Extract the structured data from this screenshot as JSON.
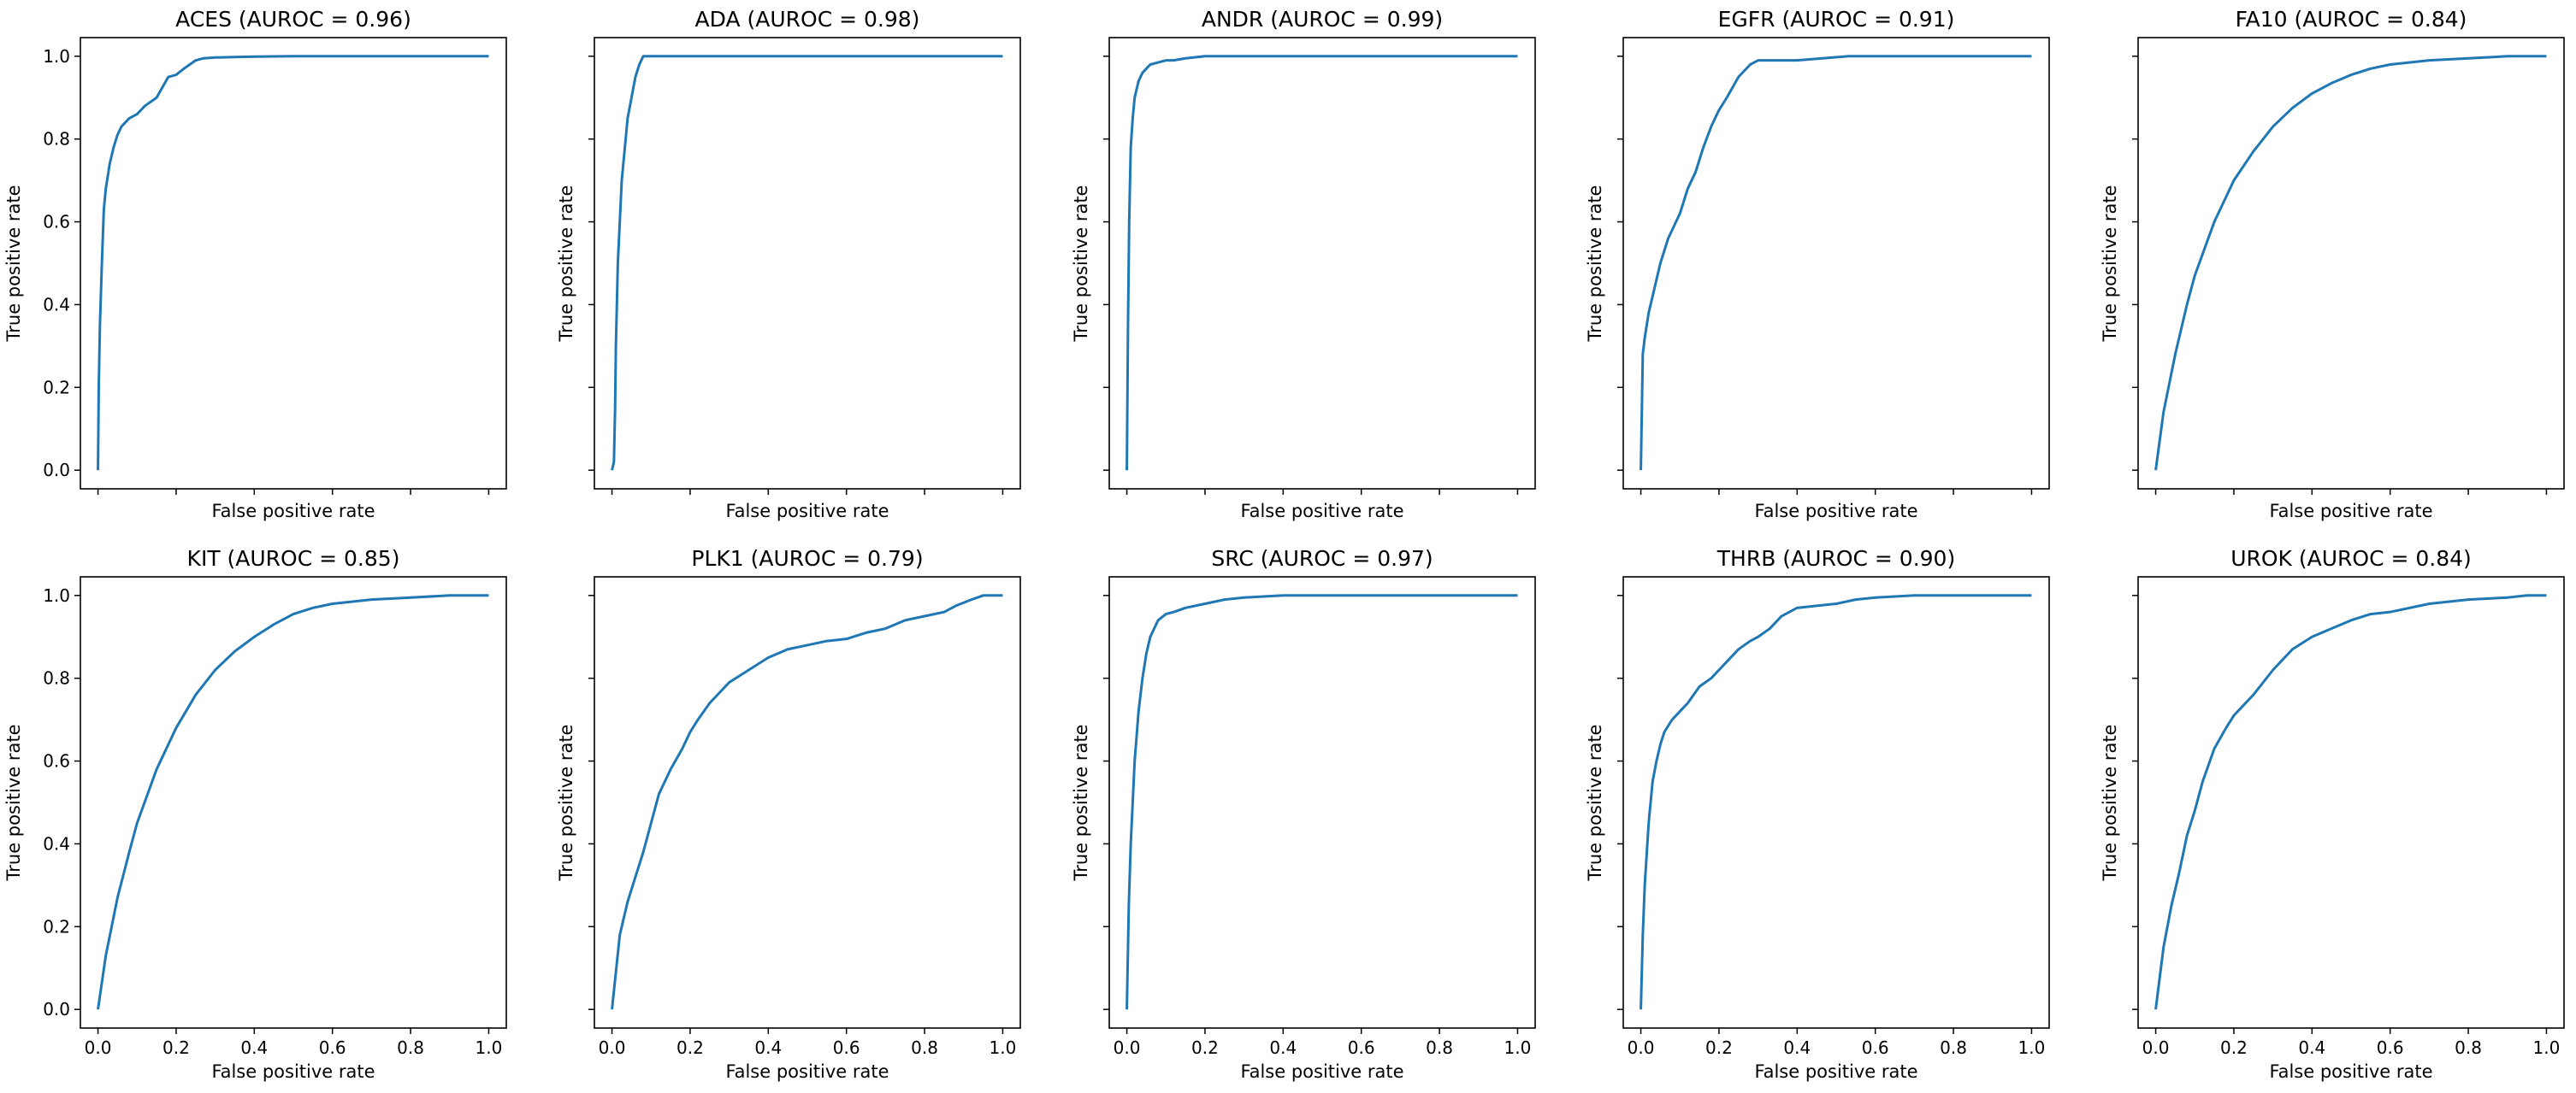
{
  "figure": {
    "xlabel": "False positive rate",
    "ylabel": "True positive rate",
    "line_color": "#1f77b4"
  },
  "chart_data": [
    {
      "type": "line",
      "title": "ACES (AUROC = 0.96)",
      "xlabel": "False positive rate",
      "ylabel": "True positive rate",
      "xlim": [
        0,
        1
      ],
      "ylim": [
        0,
        1
      ],
      "xticks": [],
      "yticks": [
        "0.0",
        "0.2",
        "0.4",
        "0.6",
        "0.8",
        "1.0"
      ],
      "grid": false,
      "series": [
        {
          "x": [
            0,
            0.002,
            0.005,
            0.01,
            0.015,
            0.02,
            0.03,
            0.04,
            0.05,
            0.06,
            0.07,
            0.08,
            0.1,
            0.12,
            0.15,
            0.18,
            0.2,
            0.22,
            0.25,
            0.27,
            0.3,
            0.35,
            0.4,
            0.5,
            0.7,
            1.0
          ],
          "y": [
            0,
            0.2,
            0.35,
            0.5,
            0.63,
            0.68,
            0.74,
            0.78,
            0.81,
            0.83,
            0.84,
            0.85,
            0.86,
            0.88,
            0.9,
            0.95,
            0.955,
            0.97,
            0.99,
            0.995,
            0.997,
            0.998,
            0.999,
            1.0,
            1.0,
            1.0
          ]
        }
      ]
    },
    {
      "type": "line",
      "title": "ADA (AUROC = 0.98)",
      "xlabel": "False positive rate",
      "ylabel": "True positive rate",
      "xlim": [
        0,
        1
      ],
      "ylim": [
        0,
        1
      ],
      "xticks": [],
      "yticks": [],
      "grid": false,
      "series": [
        {
          "x": [
            0,
            0.005,
            0.008,
            0.01,
            0.015,
            0.02,
            0.025,
            0.03,
            0.04,
            0.05,
            0.06,
            0.07,
            0.08,
            0.1,
            0.3,
            1.0
          ],
          "y": [
            0,
            0.02,
            0.15,
            0.3,
            0.5,
            0.6,
            0.7,
            0.75,
            0.85,
            0.9,
            0.95,
            0.98,
            1.0,
            1.0,
            1.0,
            1.0
          ]
        }
      ]
    },
    {
      "type": "line",
      "title": "ANDR (AUROC = 0.99)",
      "xlabel": "False positive rate",
      "ylabel": "True positive rate",
      "xlim": [
        0,
        1
      ],
      "ylim": [
        0,
        1
      ],
      "xticks": [],
      "yticks": [],
      "grid": false,
      "series": [
        {
          "x": [
            0,
            0.003,
            0.006,
            0.01,
            0.015,
            0.02,
            0.03,
            0.04,
            0.05,
            0.06,
            0.08,
            0.1,
            0.12,
            0.15,
            0.2,
            0.3,
            0.5,
            1.0
          ],
          "y": [
            0,
            0.35,
            0.6,
            0.78,
            0.85,
            0.9,
            0.94,
            0.96,
            0.97,
            0.98,
            0.985,
            0.99,
            0.99,
            0.995,
            1.0,
            1.0,
            1.0,
            1.0
          ]
        }
      ]
    },
    {
      "type": "line",
      "title": "EGFR (AUROC = 0.91)",
      "xlabel": "False positive rate",
      "ylabel": "True positive rate",
      "xlim": [
        0,
        1
      ],
      "ylim": [
        0,
        1
      ],
      "xticks": [],
      "yticks": [],
      "grid": false,
      "series": [
        {
          "x": [
            0,
            0.005,
            0.01,
            0.02,
            0.03,
            0.04,
            0.05,
            0.06,
            0.07,
            0.08,
            0.1,
            0.12,
            0.14,
            0.16,
            0.18,
            0.2,
            0.22,
            0.25,
            0.28,
            0.3,
            0.4,
            0.53,
            0.6,
            1.0
          ],
          "y": [
            0,
            0.28,
            0.32,
            0.38,
            0.42,
            0.46,
            0.5,
            0.53,
            0.56,
            0.58,
            0.62,
            0.68,
            0.72,
            0.78,
            0.83,
            0.87,
            0.9,
            0.95,
            0.98,
            0.99,
            0.99,
            1.0,
            1.0,
            1.0
          ]
        }
      ]
    },
    {
      "type": "line",
      "title": "FA10 (AUROC = 0.84)",
      "xlabel": "False positive rate",
      "ylabel": "True positive rate",
      "xlim": [
        0,
        1
      ],
      "ylim": [
        0,
        1
      ],
      "xticks": [],
      "yticks": [],
      "grid": false,
      "series": [
        {
          "x": [
            0,
            0.02,
            0.05,
            0.08,
            0.1,
            0.15,
            0.2,
            0.25,
            0.3,
            0.35,
            0.4,
            0.45,
            0.5,
            0.55,
            0.6,
            0.7,
            0.8,
            0.9,
            1.0
          ],
          "y": [
            0,
            0.14,
            0.28,
            0.4,
            0.47,
            0.6,
            0.7,
            0.77,
            0.83,
            0.875,
            0.91,
            0.935,
            0.955,
            0.97,
            0.98,
            0.99,
            0.995,
            1.0,
            1.0
          ]
        }
      ]
    },
    {
      "type": "line",
      "title": "KIT (AUROC = 0.85)",
      "xlabel": "False positive rate",
      "ylabel": "True positive rate",
      "xlim": [
        0,
        1
      ],
      "ylim": [
        0,
        1
      ],
      "xticks": [
        "0.0",
        "0.2",
        "0.4",
        "0.6",
        "0.8",
        "1.0"
      ],
      "yticks": [
        "0.0",
        "0.2",
        "0.4",
        "0.6",
        "0.8",
        "1.0"
      ],
      "grid": false,
      "series": [
        {
          "x": [
            0,
            0.02,
            0.05,
            0.08,
            0.1,
            0.15,
            0.2,
            0.25,
            0.3,
            0.35,
            0.4,
            0.45,
            0.5,
            0.55,
            0.6,
            0.7,
            0.8,
            0.9,
            1.0
          ],
          "y": [
            0,
            0.13,
            0.27,
            0.38,
            0.45,
            0.58,
            0.68,
            0.76,
            0.82,
            0.865,
            0.9,
            0.93,
            0.955,
            0.97,
            0.98,
            0.99,
            0.995,
            1.0,
            1.0
          ]
        }
      ]
    },
    {
      "type": "line",
      "title": "PLK1 (AUROC = 0.79)",
      "xlabel": "False positive rate",
      "ylabel": "True positive rate",
      "xlim": [
        0,
        1
      ],
      "ylim": [
        0,
        1
      ],
      "xticks": [
        "0.0",
        "0.2",
        "0.4",
        "0.6",
        "0.8",
        "1.0"
      ],
      "yticks": [],
      "grid": false,
      "series": [
        {
          "x": [
            0,
            0.02,
            0.04,
            0.06,
            0.08,
            0.1,
            0.12,
            0.15,
            0.18,
            0.2,
            0.22,
            0.25,
            0.3,
            0.35,
            0.4,
            0.45,
            0.5,
            0.55,
            0.6,
            0.65,
            0.7,
            0.75,
            0.8,
            0.85,
            0.88,
            0.92,
            0.95,
            1.0
          ],
          "y": [
            0,
            0.18,
            0.26,
            0.32,
            0.38,
            0.45,
            0.52,
            0.58,
            0.63,
            0.67,
            0.7,
            0.74,
            0.79,
            0.82,
            0.85,
            0.87,
            0.88,
            0.89,
            0.895,
            0.91,
            0.92,
            0.94,
            0.95,
            0.96,
            0.975,
            0.99,
            1.0,
            1.0
          ]
        }
      ]
    },
    {
      "type": "line",
      "title": "SRC (AUROC = 0.97)",
      "xlabel": "False positive rate",
      "ylabel": "True positive rate",
      "xlim": [
        0,
        1
      ],
      "ylim": [
        0,
        1
      ],
      "xticks": [
        "0.0",
        "0.2",
        "0.4",
        "0.6",
        "0.8",
        "1.0"
      ],
      "yticks": [],
      "grid": false,
      "series": [
        {
          "x": [
            0,
            0.005,
            0.01,
            0.015,
            0.02,
            0.03,
            0.04,
            0.05,
            0.06,
            0.08,
            0.1,
            0.12,
            0.15,
            0.2,
            0.25,
            0.3,
            0.4,
            0.5,
            1.0
          ],
          "y": [
            0,
            0.25,
            0.4,
            0.5,
            0.6,
            0.72,
            0.8,
            0.86,
            0.9,
            0.94,
            0.955,
            0.96,
            0.97,
            0.98,
            0.99,
            0.995,
            1.0,
            1.0,
            1.0
          ]
        }
      ]
    },
    {
      "type": "line",
      "title": "THRB (AUROC = 0.90)",
      "xlabel": "False positive rate",
      "ylabel": "True positive rate",
      "xlim": [
        0,
        1
      ],
      "ylim": [
        0,
        1
      ],
      "xticks": [
        "0.0",
        "0.2",
        "0.4",
        "0.6",
        "0.8",
        "1.0"
      ],
      "yticks": [],
      "grid": false,
      "series": [
        {
          "x": [
            0,
            0.005,
            0.01,
            0.02,
            0.03,
            0.04,
            0.05,
            0.06,
            0.08,
            0.1,
            0.12,
            0.15,
            0.18,
            0.2,
            0.22,
            0.25,
            0.28,
            0.3,
            0.33,
            0.36,
            0.4,
            0.45,
            0.5,
            0.55,
            0.6,
            0.7,
            1.0
          ],
          "y": [
            0,
            0.18,
            0.3,
            0.45,
            0.55,
            0.6,
            0.64,
            0.67,
            0.7,
            0.72,
            0.74,
            0.78,
            0.8,
            0.82,
            0.84,
            0.87,
            0.89,
            0.9,
            0.92,
            0.95,
            0.97,
            0.975,
            0.98,
            0.99,
            0.995,
            1.0,
            1.0
          ]
        }
      ]
    },
    {
      "type": "line",
      "title": "UROK (AUROC = 0.84)",
      "xlabel": "False positive rate",
      "ylabel": "True positive rate",
      "xlim": [
        0,
        1
      ],
      "ylim": [
        0,
        1
      ],
      "xticks": [
        "0.0",
        "0.2",
        "0.4",
        "0.6",
        "0.8",
        "1.0"
      ],
      "yticks": [],
      "grid": false,
      "series": [
        {
          "x": [
            0,
            0.02,
            0.04,
            0.06,
            0.08,
            0.1,
            0.12,
            0.15,
            0.18,
            0.2,
            0.25,
            0.3,
            0.35,
            0.4,
            0.45,
            0.5,
            0.55,
            0.6,
            0.7,
            0.8,
            0.9,
            0.95,
            1.0
          ],
          "y": [
            0,
            0.15,
            0.25,
            0.33,
            0.42,
            0.48,
            0.55,
            0.63,
            0.68,
            0.71,
            0.76,
            0.82,
            0.87,
            0.9,
            0.92,
            0.94,
            0.955,
            0.96,
            0.98,
            0.99,
            0.995,
            1.0,
            1.0
          ]
        }
      ]
    }
  ]
}
